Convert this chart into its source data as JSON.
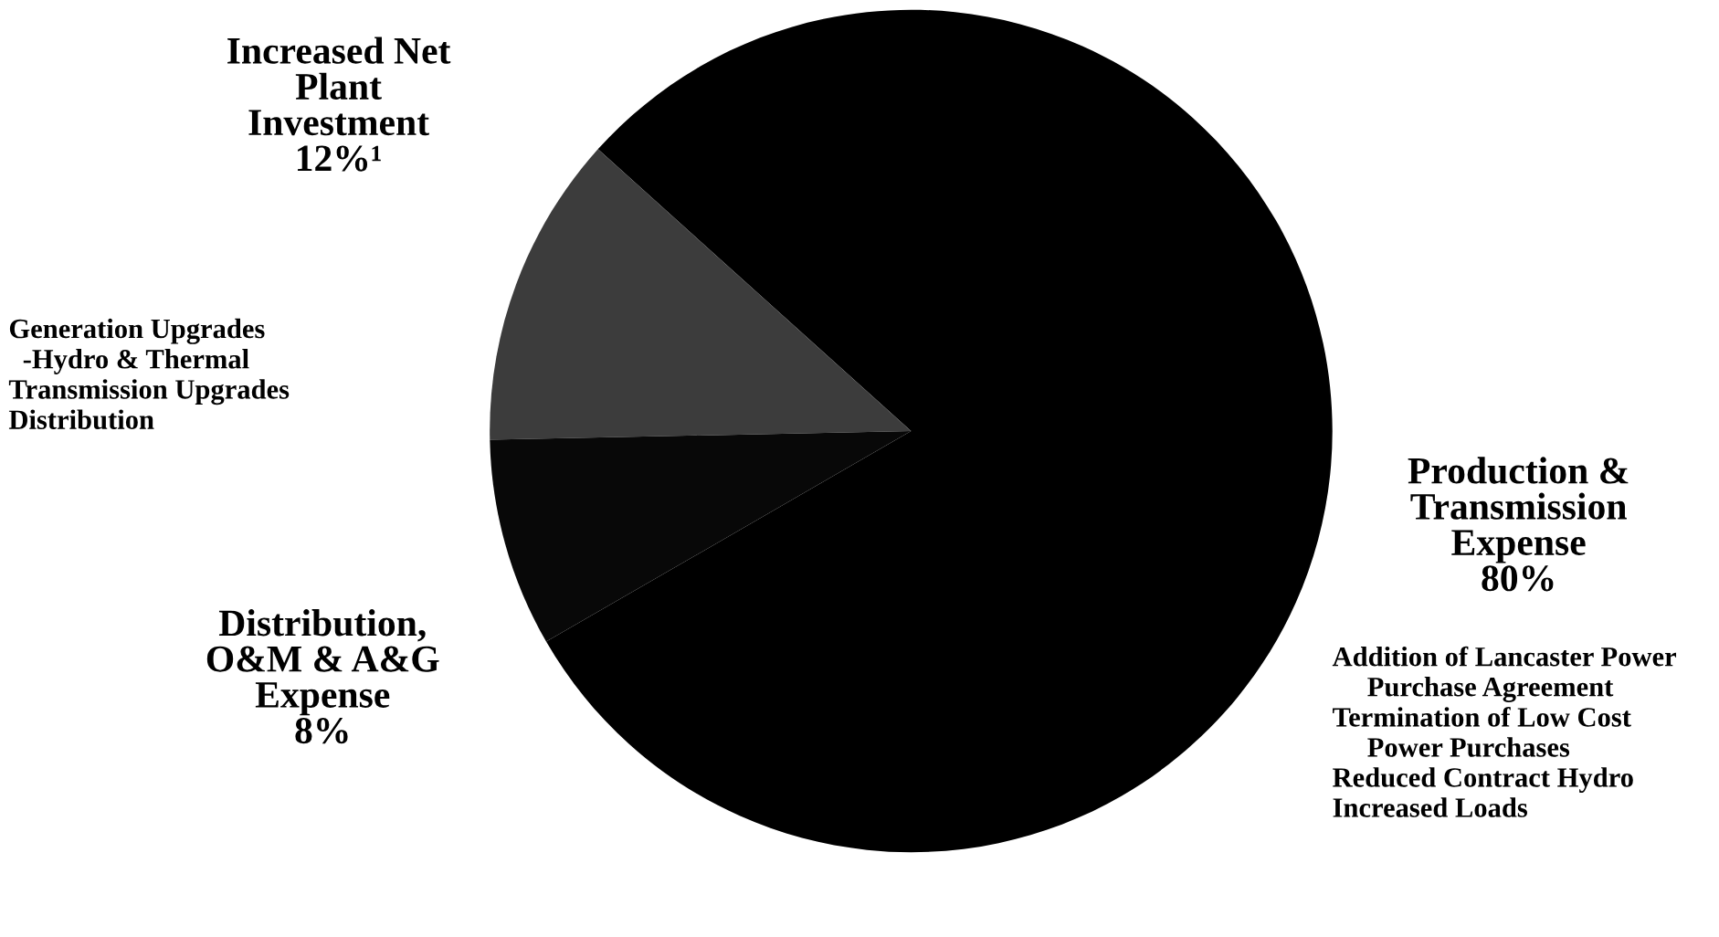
{
  "chart_data": {
    "type": "pie",
    "categories": [
      "Production &\nTransmission\nExpense",
      "Increased Net\nPlant\nInvestment",
      "Distribution,\nO&M & A&G\nExpense"
    ],
    "values": [
      80,
      12,
      8
    ],
    "value_labels": [
      "80%",
      "12%¹",
      "8%"
    ],
    "colors": [
      "#000000",
      "#3c3c3c",
      "#080808"
    ],
    "annotations": [
      "Addition of Lancaster Power\n     Purchase Agreement\nTermination of Low Cost\n     Power Purchases\nReduced Contract Hydro\nIncreased Loads",
      "Generation Upgrades\n  -Hydro & Thermal\nTransmission Upgrades\nDistribution"
    ]
  }
}
